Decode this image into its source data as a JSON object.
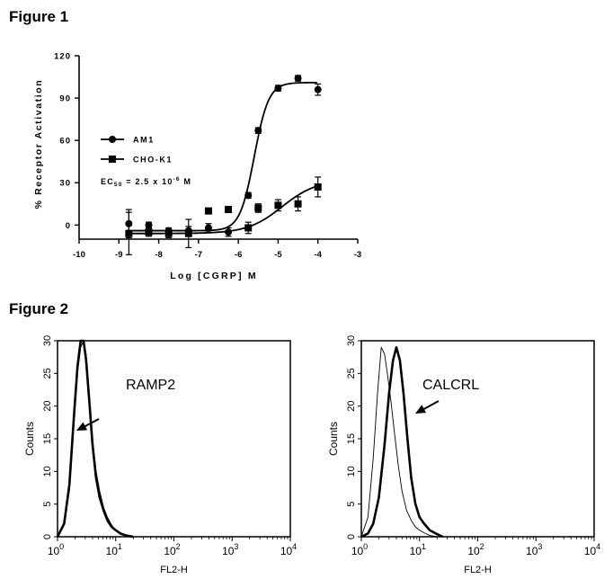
{
  "figure1": {
    "label": "Figure 1",
    "chart_data": {
      "type": "line",
      "xlabel": "Log [CGRP] M",
      "ylabel": "% Receptor Activation",
      "xlim": [
        -10,
        -3
      ],
      "ylim": [
        -10,
        120
      ],
      "x_ticks": [
        -10,
        -9,
        -8,
        -7,
        -6,
        -5,
        -4,
        -3
      ],
      "y_ticks": [
        0,
        30,
        60,
        90,
        120
      ],
      "annotation": "EC50 = 2.5 x 10-6 M",
      "annotation_parts": {
        "base": "EC",
        "sub": "50",
        "mid": " = 2.5 x 10",
        "sup": "-6",
        "end": " M"
      },
      "legend_position": "middle-left",
      "series": [
        {
          "name": "AM1",
          "marker": "circle",
          "x": [
            -8.75,
            -8.25,
            -7.75,
            -7.25,
            -6.75,
            -6.25,
            -5.75,
            -5.5,
            -5.0,
            -4.5,
            -4.0
          ],
          "y": [
            1,
            0,
            -4,
            -4,
            -2,
            -5,
            21,
            67,
            97,
            104,
            96
          ],
          "err": [
            10,
            2,
            2,
            3,
            3,
            3,
            2,
            2,
            2,
            2,
            4
          ],
          "fit": {
            "bottom": -4,
            "top": 101,
            "logEC50": -5.6,
            "hill": 2.4
          }
        },
        {
          "name": "CHO-K1",
          "marker": "square",
          "x": [
            -8.75,
            -8.25,
            -7.75,
            -7.25,
            -6.75,
            -6.25,
            -5.75,
            -5.5,
            -5.0,
            -4.5,
            -4.0
          ],
          "y": [
            -6,
            -5,
            -6,
            -6,
            10,
            11,
            -2,
            12,
            14,
            15,
            27
          ],
          "err": [
            15,
            3,
            3,
            10,
            2,
            2,
            4,
            3,
            4,
            5,
            7
          ],
          "fit": {
            "bottom": -6,
            "top": 32,
            "logEC50": -4.9,
            "hill": 1.0
          }
        }
      ]
    }
  },
  "figure2": {
    "label": "Figure 2",
    "panels": [
      {
        "chart_data": {
          "type": "area",
          "annotation": "RAMP2",
          "xlabel": "FL2-H",
          "ylabel": "Counts",
          "x_scale": "log",
          "xlim": [
            1,
            10000
          ],
          "ylim": [
            0,
            30
          ],
          "x_ticks": [
            {
              "base": "10",
              "exp": "0"
            },
            {
              "base": "10",
              "exp": "1"
            },
            {
              "base": "10",
              "exp": "2"
            },
            {
              "base": "10",
              "exp": "3"
            },
            {
              "base": "10",
              "exp": "4"
            }
          ],
          "y_ticks": [
            0,
            5,
            10,
            15,
            20,
            25,
            30
          ],
          "series": [
            {
              "style": "thick",
              "x": [
                1.0,
                1.3,
                1.6,
                1.9,
                2.2,
                2.5,
                2.8,
                3.1,
                3.5,
                4.0,
                4.6,
                5.3,
                6.2,
                7.2,
                8.5,
                10,
                12,
                15,
                20
              ],
              "y": [
                0,
                2,
                8,
                18,
                26,
                30,
                30,
                27,
                21,
                14,
                9,
                6,
                4,
                2.5,
                1.5,
                1,
                0.5,
                0.2,
                0
              ]
            },
            {
              "style": "thin",
              "x": [
                1.0,
                1.3,
                1.6,
                1.9,
                2.2,
                2.5,
                2.8,
                3.1,
                3.5,
                4.0,
                4.6,
                5.3,
                6.2,
                7.2,
                8.5,
                10,
                12,
                15,
                20
              ],
              "y": [
                0,
                2,
                7,
                17,
                25,
                29,
                30,
                28,
                22,
                15,
                10,
                7,
                4.5,
                3,
                1.8,
                1,
                0.5,
                0.2,
                0
              ]
            }
          ]
        }
      },
      {
        "chart_data": {
          "type": "area",
          "annotation": "CALCRL",
          "xlabel": "FL2-H",
          "ylabel": "Counts",
          "x_scale": "log",
          "xlim": [
            1,
            10000
          ],
          "ylim": [
            0,
            30
          ],
          "x_ticks": [
            {
              "base": "10",
              "exp": "0"
            },
            {
              "base": "10",
              "exp": "1"
            },
            {
              "base": "10",
              "exp": "2"
            },
            {
              "base": "10",
              "exp": "3"
            },
            {
              "base": "10",
              "exp": "4"
            }
          ],
          "y_ticks": [
            0,
            5,
            10,
            15,
            20,
            25,
            30
          ],
          "series": [
            {
              "style": "thin",
              "x": [
                1.0,
                1.3,
                1.6,
                1.9,
                2.2,
                2.5,
                2.8,
                3.2,
                3.7,
                4.3,
                5.0,
                6.0,
                7.2,
                8.5,
                10,
                12,
                15,
                20
              ],
              "y": [
                0,
                3,
                12,
                22,
                29,
                28,
                25,
                21,
                16,
                11,
                7,
                4,
                2.5,
                1.5,
                1,
                0.6,
                0.2,
                0
              ]
            },
            {
              "style": "thick",
              "x": [
                1.0,
                1.3,
                1.6,
                2.0,
                2.5,
                3.0,
                3.5,
                4.0,
                4.6,
                5.3,
                6.2,
                7.2,
                8.5,
                10,
                12,
                15,
                20,
                25
              ],
              "y": [
                0,
                0.5,
                2,
                6,
                14,
                22,
                27,
                29,
                27,
                22,
                15,
                9,
                5,
                3,
                2,
                1,
                0.4,
                0
              ]
            }
          ]
        }
      }
    ]
  }
}
